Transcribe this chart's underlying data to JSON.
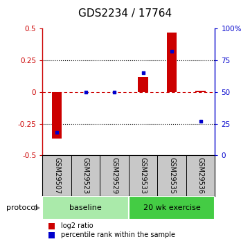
{
  "title": "GDS2234 / 17764",
  "samples": [
    "GSM29507",
    "GSM29523",
    "GSM29529",
    "GSM29533",
    "GSM29535",
    "GSM29536"
  ],
  "log2_ratio": [
    -0.37,
    0.0,
    0.0,
    0.12,
    0.47,
    0.01
  ],
  "percentile_rank": [
    18,
    50,
    50,
    65,
    82,
    27
  ],
  "ylim_left": [
    -0.5,
    0.5
  ],
  "ylim_right": [
    0,
    100
  ],
  "yticks_left": [
    -0.5,
    -0.25,
    0,
    0.25,
    0.5
  ],
  "yticks_left_labels": [
    "-0.5",
    "-0.25",
    "0",
    "0.25",
    "0.5"
  ],
  "yticks_right": [
    0,
    25,
    50,
    75,
    100
  ],
  "yticks_right_labels": [
    "0",
    "25",
    "50",
    "75",
    "100%"
  ],
  "dotted_lines": [
    -0.25,
    0.0,
    0.25
  ],
  "bar_color": "#cc0000",
  "dot_color": "#0000cc",
  "zero_line_color": "#cc0000",
  "protocol_groups": [
    {
      "label": "baseline",
      "start": 0,
      "end": 3,
      "color": "#aaeaaa"
    },
    {
      "label": "20 wk exercise",
      "start": 3,
      "end": 6,
      "color": "#44cc44"
    }
  ],
  "protocol_label": "protocol",
  "legend_entries": [
    {
      "label": "log2 ratio",
      "color": "#cc0000"
    },
    {
      "label": "percentile rank within the sample",
      "color": "#0000cc"
    }
  ],
  "title_fontsize": 11,
  "tick_fontsize": 7.5,
  "axis_color_left": "#cc0000",
  "axis_color_right": "#0000cc",
  "sample_bg_color": "#c8c8c8",
  "bar_width": 0.35
}
